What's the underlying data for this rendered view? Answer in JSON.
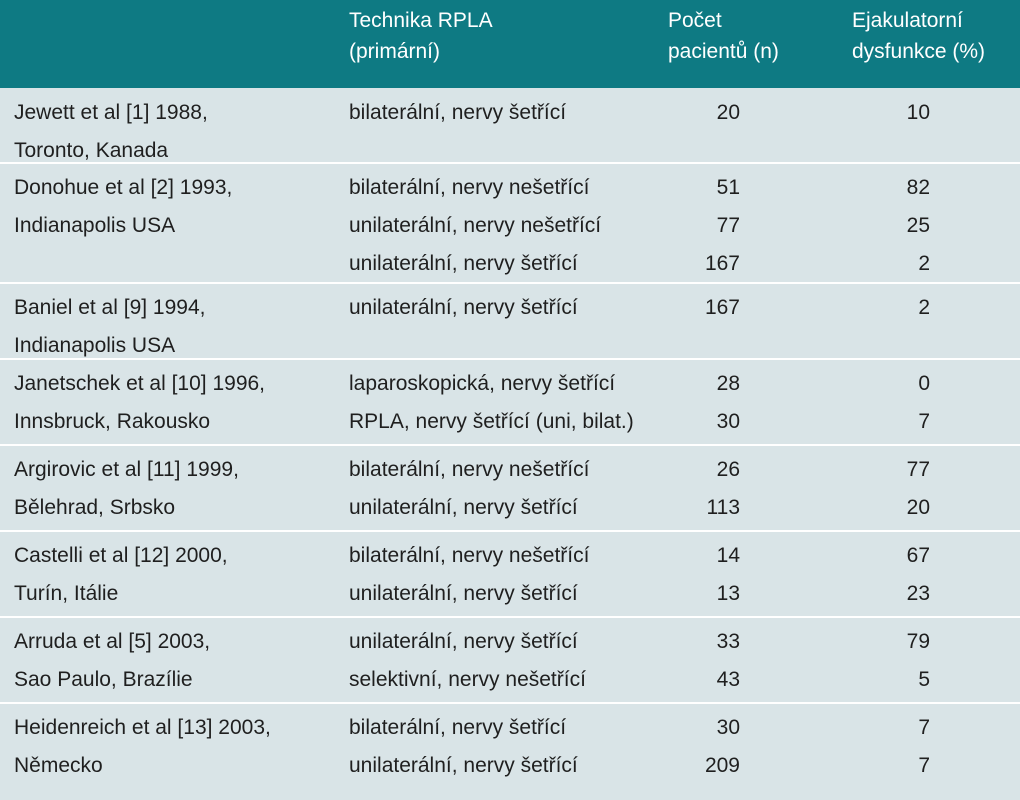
{
  "header": {
    "col1": "",
    "col2": "Technika RPLA\n (primární)",
    "col3": "Počet\npacientů (n)",
    "col4": "Ejakulatorní\ndysfunkce (%)"
  },
  "rows": [
    {
      "study": "Jewett et al [1] 1988,\nToronto, Kanada",
      "techniques": [
        "bilaterální, nervy šetřící"
      ],
      "patients": [
        "20"
      ],
      "dysfunction": [
        "10"
      ]
    },
    {
      "study": "Donohue et al [2] 1993,\nIndianapolis USA",
      "techniques": [
        "bilaterální, nervy nešetřící",
        "unilaterální, nervy nešetřící",
        "unilaterální, nervy šetřící"
      ],
      "patients": [
        "51",
        "77",
        "167"
      ],
      "dysfunction": [
        "82",
        "25",
        "2"
      ]
    },
    {
      "study": "Baniel et al [9] 1994,\nIndianapolis USA",
      "techniques": [
        "unilaterální, nervy šetřící"
      ],
      "patients": [
        "167"
      ],
      "dysfunction": [
        "2"
      ]
    },
    {
      "study": "Janetschek et al [10] 1996,\nInnsbruck, Rakousko",
      "techniques": [
        "laparoskopická, nervy šetřící",
        "RPLA, nervy šetřící (uni, bilat.)"
      ],
      "patients": [
        "28",
        "30"
      ],
      "dysfunction": [
        "0",
        "7"
      ]
    },
    {
      "study": "Argirovic et al [11] 1999,\nBělehrad, Srbsko",
      "techniques": [
        "bilaterální, nervy nešetřící",
        "unilaterální, nervy šetřící"
      ],
      "patients": [
        "26",
        "113"
      ],
      "dysfunction": [
        "77",
        "20"
      ]
    },
    {
      "study": "Castelli et al [12] 2000,\nTurín, Itálie",
      "techniques": [
        "bilaterální, nervy nešetřící",
        "unilaterální, nervy šetřící"
      ],
      "patients": [
        "14",
        "13"
      ],
      "dysfunction": [
        "67",
        "23"
      ]
    },
    {
      "study": "Arruda et al [5] 2003,\nSao Paulo, Brazílie",
      "techniques": [
        "unilaterální, nervy šetřící",
        "selektivní, nervy nešetřící"
      ],
      "patients": [
        "33",
        "43"
      ],
      "dysfunction": [
        "79",
        "5"
      ]
    },
    {
      "study": "Heidenreich et al [13] 2003,\nNěmecko",
      "techniques": [
        "bilaterální, nervy šetřící",
        "unilaterální, nervy šetřící"
      ],
      "patients": [
        "30",
        "209"
      ],
      "dysfunction": [
        "7",
        "7"
      ]
    }
  ],
  "colors": {
    "header_bg": "#0e7a83",
    "body_bg": "#d9e4e7",
    "separator": "#ffffff"
  }
}
